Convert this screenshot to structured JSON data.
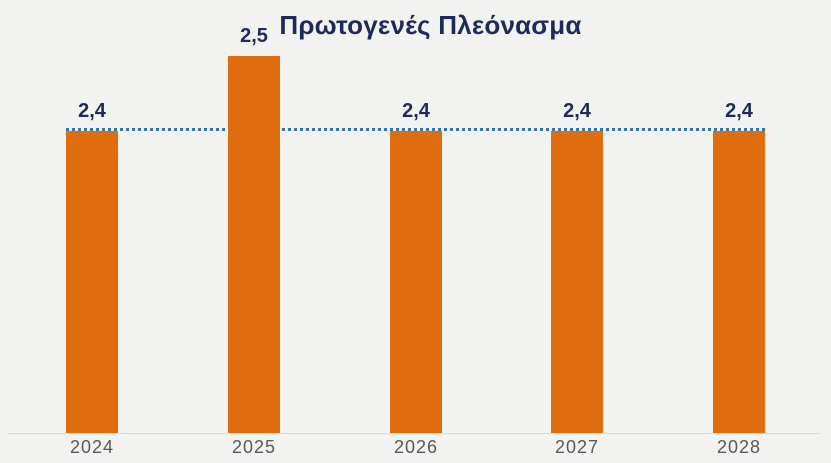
{
  "chart_data": {
    "type": "bar",
    "title": "Πρωτογενές Πλεόνασμα",
    "categories": [
      "2024",
      "2025",
      "2026",
      "2027",
      "2028"
    ],
    "values": [
      2.4,
      2.5,
      2.4,
      2.4,
      2.4
    ],
    "value_labels": [
      "2,4",
      "2,5",
      "2,4",
      "2,4",
      "2,4"
    ],
    "xlabel": "",
    "ylabel": "",
    "ylim": [
      2.0,
      2.6
    ],
    "grid": false,
    "legend": "none",
    "reference_line": {
      "value": 2.4,
      "style": "dotted",
      "color": "#2E75B6"
    }
  },
  "colors": {
    "background": "#F2F2F1",
    "bar": "#E06C10",
    "title_text": "#1F2A5B",
    "value_label_text": "#1F2A5B",
    "x_label_text": "#595959",
    "axis_line": "#DBDBDB",
    "reference_line": "#2E75B6"
  }
}
